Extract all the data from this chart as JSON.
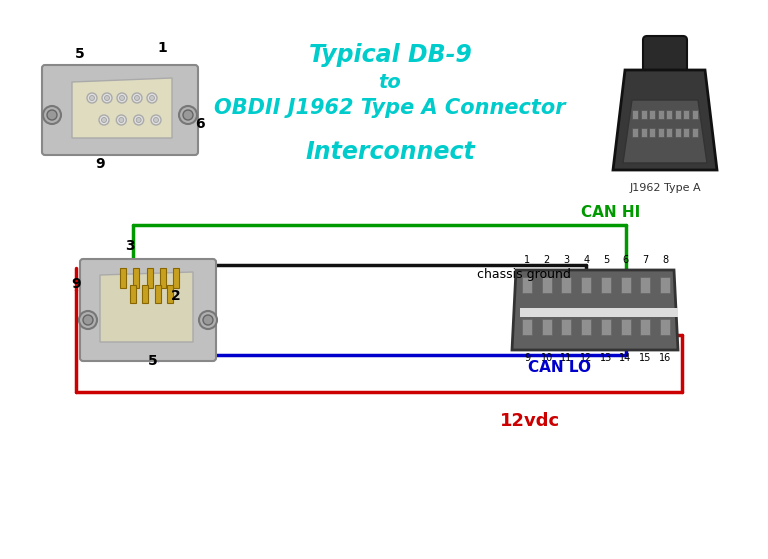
{
  "title_line1": "Typical DB-9",
  "title_line2": "to",
  "title_line3": "OBDII J1962 Type A Connector",
  "title_line4": "Interconnect",
  "title_color": "#00CCCC",
  "label_j1962": "J1962 Type A",
  "label_can_hi": "CAN HI",
  "label_can_lo": "CAN LO",
  "label_12vdc": "12vdc",
  "label_chassis": "chassis ground",
  "can_hi_color": "#009900",
  "can_lo_color": "#0000CC",
  "vdc_color": "#CC0000",
  "black_color": "#111111",
  "bg_color": "#FFFFFF",
  "pin_labels_top": [
    "1",
    "2",
    "3",
    "4",
    "5",
    "6",
    "7",
    "8"
  ],
  "pin_labels_bot": [
    "9",
    "10",
    "11",
    "12",
    "13",
    "14",
    "15",
    "16"
  ]
}
